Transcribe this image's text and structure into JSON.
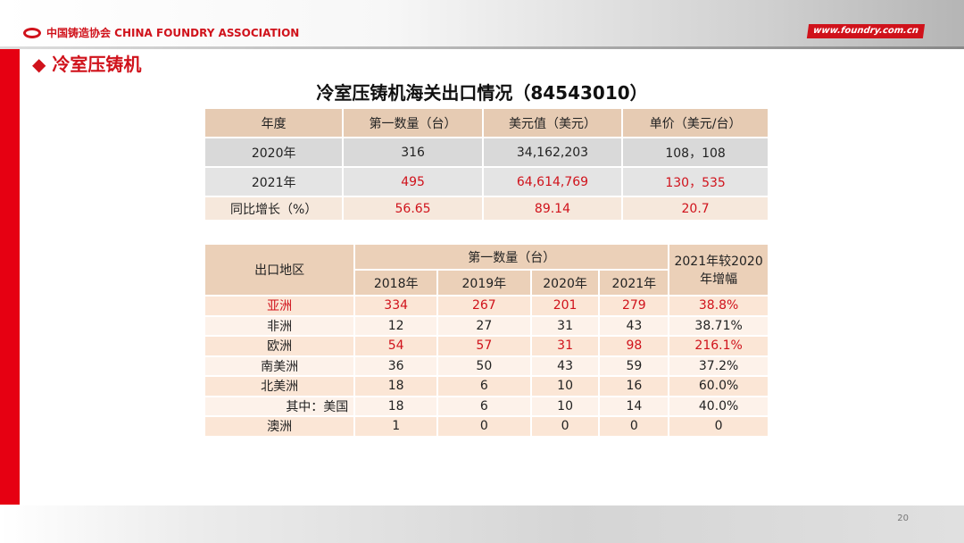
{
  "header": {
    "org": "中国铸造协会 CHINA FOUNDRY ASSOCIATION",
    "site": "www.foundry.com.cn"
  },
  "section": "◆ 冷室压铸机",
  "title": "冷室压铸机海关出口情况（84543010）",
  "table1": {
    "headers": [
      "年度",
      "第一数量（台）",
      "美元值（美元）",
      "单价（美元/台）"
    ],
    "rows": [
      [
        "2020年",
        "316",
        "34,162,203",
        "108，108"
      ],
      [
        "2021年",
        "495",
        "64,614,769",
        "130，535"
      ],
      [
        "同比增长（%）",
        "56.65",
        "89.14",
        "20.7"
      ]
    ]
  },
  "table2": {
    "region_header": "出口地区",
    "qty_header": "第一数量（台）",
    "growth_header": "2021年较2020年增幅",
    "years": [
      "2018年",
      "2019年",
      "2020年",
      "2021年"
    ],
    "rows": [
      [
        "亚洲",
        "334",
        "267",
        "201",
        "279",
        "38.8%"
      ],
      [
        "非洲",
        "12",
        "27",
        "31",
        "43",
        "38.71%"
      ],
      [
        "欧洲",
        "54",
        "57",
        "31",
        "98",
        "216.1%"
      ],
      [
        "南美洲",
        "36",
        "50",
        "43",
        "59",
        "37.2%"
      ],
      [
        "北美洲",
        "18",
        "6",
        "10",
        "16",
        "60.0%"
      ],
      [
        "其中：美国",
        "18",
        "6",
        "10",
        "14",
        "40.0%"
      ],
      [
        "澳洲",
        "1",
        "0",
        "0",
        "0",
        "0"
      ]
    ]
  },
  "page_number": "20",
  "colors": {
    "accent": "#d0121b"
  }
}
